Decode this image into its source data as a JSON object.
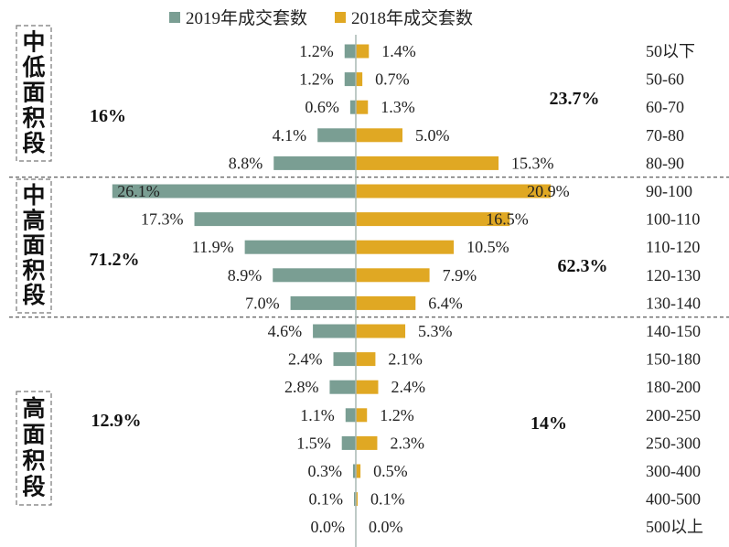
{
  "chart_data": {
    "type": "bar",
    "orientation": "horizontal-butterfly",
    "title": "",
    "legend_position": "top-center",
    "legend": [
      {
        "name": "2019年成交套数",
        "color": "#7a9e93"
      },
      {
        "name": "2018年成交套数",
        "color": "#e0a823"
      }
    ],
    "categories": [
      "50以下",
      "50-60",
      "60-70",
      "70-80",
      "80-90",
      "90-100",
      "100-110",
      "110-120",
      "120-130",
      "130-140",
      "140-150",
      "150-180",
      "180-200",
      "200-250",
      "250-300",
      "300-400",
      "400-500",
      "500以上"
    ],
    "series": [
      {
        "name": "2019年成交套数",
        "color": "#7a9e93",
        "values": [
          1.2,
          1.2,
          0.6,
          4.1,
          8.8,
          26.1,
          17.3,
          11.9,
          8.9,
          7.0,
          4.6,
          2.4,
          2.8,
          1.1,
          1.5,
          0.3,
          0.1,
          0.0
        ],
        "labels": [
          "1.2%",
          "1.2%",
          "0.6%",
          "4.1%",
          "8.8%",
          "26.1%",
          "17.3%",
          "11.9%",
          "8.9%",
          "7.0%",
          "4.6%",
          "2.4%",
          "2.8%",
          "1.1%",
          "1.5%",
          "0.3%",
          "0.1%",
          "0.0%"
        ]
      },
      {
        "name": "2018年成交套数",
        "color": "#e0a823",
        "values": [
          1.4,
          0.7,
          1.3,
          5.0,
          15.3,
          20.9,
          16.5,
          10.5,
          7.9,
          6.4,
          5.3,
          2.1,
          2.4,
          1.2,
          2.3,
          0.5,
          0.1,
          0.0
        ],
        "labels": [
          "1.4%",
          "0.7%",
          "1.3%",
          "5.0%",
          "15.3%",
          "20.9%",
          "16.5%",
          "10.5%",
          "7.9%",
          "6.4%",
          "5.3%",
          "2.1%",
          "2.4%",
          "1.2%",
          "2.3%",
          "0.5%",
          "0.1%",
          "0.0%"
        ]
      }
    ],
    "groups": [
      {
        "name": "中低面积段",
        "total_2019": "16%",
        "total_2018": "23.7%",
        "start": 0,
        "end": 4
      },
      {
        "name": "中高面积段",
        "total_2019": "71.2%",
        "total_2018": "62.3%",
        "start": 5,
        "end": 9
      },
      {
        "name": "高面积段",
        "total_2019": "12.9%",
        "total_2018": "14%",
        "start": 10,
        "end": 17
      }
    ],
    "xlabel": "",
    "ylabel": "",
    "unit": "%"
  }
}
